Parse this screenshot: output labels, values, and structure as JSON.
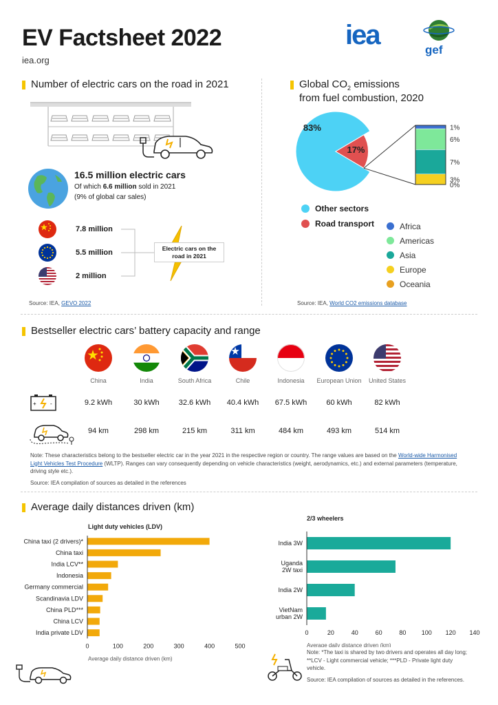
{
  "header": {
    "title": "EV Factsheet 2022",
    "site": "iea.org",
    "iea_logo": "iea",
    "gef_logo": "gef"
  },
  "s1": {
    "heading": "Number of electric cars on the road in 2021",
    "total": "16.5 million electric cars",
    "sold_pre": "Of which ",
    "sold_bold": "6.6 million",
    "sold_post": " sold in 2021",
    "share": "(9% of global car sales)",
    "countries": [
      {
        "flag": "china-flag",
        "value": "7.8 million"
      },
      {
        "flag": "eu-flag",
        "value": "5.5 million"
      },
      {
        "flag": "usa-flag",
        "value": "2 million"
      }
    ],
    "callout": "Electric cars on the road in 2021",
    "source_pre": "Source: IEA, ",
    "source_link": "GEVO 2022"
  },
  "s2": {
    "heading_1": "Global CO",
    "heading_sub": "2",
    "heading_2": " emissions",
    "heading_3": "from fuel combustion, 2020",
    "source_pre": "Source: IEA, ",
    "source_link": "World CO2 emissions database"
  },
  "chart_data": [
    {
      "type": "pie",
      "title": "",
      "slices": [
        {
          "name": "Other sectors",
          "value": 83,
          "label": "83%",
          "color": "#4dd2f5"
        },
        {
          "name": "Road transport",
          "value": 17,
          "label": "17%",
          "color": "#e05050"
        }
      ],
      "breakdown": {
        "type": "stacked-bar",
        "of": "Road transport",
        "segments": [
          {
            "name": "Africa",
            "value": 1,
            "label": "1%",
            "color": "#3a6fd0"
          },
          {
            "name": "Americas",
            "value": 6,
            "label": "6%",
            "color": "#7ee89a"
          },
          {
            "name": "Asia",
            "value": 7,
            "label": "7%",
            "color": "#1aa89a"
          },
          {
            "name": "Europe",
            "value": 3,
            "label": "3%",
            "color": "#f5d020"
          },
          {
            "name": "Oceania",
            "value": 0,
            "label": "0%",
            "color": "#e8a020"
          }
        ]
      }
    },
    {
      "type": "bar",
      "orientation": "horizontal",
      "title": "Light duty vehicles (LDV)",
      "categories": [
        "China taxi (2 drivers)*",
        "China taxi",
        "India LCV**",
        "Indonesia",
        "Germany commercial",
        "Scandinavia LDV",
        "China PLD***",
        "China LCV",
        "India private LDV"
      ],
      "values": [
        400,
        240,
        100,
        78,
        68,
        50,
        42,
        40,
        40
      ],
      "xlabel": "Average daily distance driven (km)",
      "xlim": [
        0,
        500
      ],
      "ticks": [
        "0",
        "100",
        "200",
        "300",
        "400",
        "500"
      ],
      "color": "#f2a90a",
      "grid": false
    },
    {
      "type": "bar",
      "orientation": "horizontal",
      "title": "2/3 wheelers",
      "categories": [
        "India 3W",
        "Uganda 2W taxi",
        "India 2W",
        "VietNam urban 2W"
      ],
      "values": [
        120,
        74,
        40,
        16
      ],
      "xlabel": "Average daily distance driven (km)",
      "xlim": [
        0,
        140
      ],
      "ticks": [
        "0",
        "20",
        "40",
        "60",
        "80",
        "100",
        "120",
        "140"
      ],
      "color": "#1aaa9a",
      "grid": false
    }
  ],
  "pie_legend": [
    {
      "label": "Other sectors",
      "color": "#4dd2f5"
    },
    {
      "label": "Road transport",
      "color": "#e05050"
    }
  ],
  "region_legend": [
    {
      "label": "Africa",
      "color": "#3a6fd0"
    },
    {
      "label": "Americas",
      "color": "#7ee89a"
    },
    {
      "label": "Asia",
      "color": "#1aa89a"
    },
    {
      "label": "Europe",
      "color": "#f5d020"
    },
    {
      "label": "Oceania",
      "color": "#e8a020"
    }
  ],
  "s3": {
    "heading": "Bestseller electric cars’ battery capacity and range",
    "countries": [
      {
        "name": "China",
        "flag": "china-flag",
        "battery": "9.2 kWh",
        "range": "94 km"
      },
      {
        "name": "India",
        "flag": "india-flag",
        "battery": "30 kWh",
        "range": "298 km"
      },
      {
        "name": "South Africa",
        "flag": "south-africa-flag",
        "battery": "32.6 kWh",
        "range": "215 km"
      },
      {
        "name": "Chile",
        "flag": "chile-flag",
        "battery": "40.4 kWh",
        "range": "311 km"
      },
      {
        "name": "Indonesia",
        "flag": "indonesia-flag",
        "battery": "67.5 kWh",
        "range": "484 km"
      },
      {
        "name": "European Union",
        "flag": "eu-flag",
        "battery": "60 kWh",
        "range": "493 km"
      },
      {
        "name": "United States",
        "flag": "usa-flag",
        "battery": "82 kWh",
        "range": "514 km"
      }
    ],
    "note_pre": "Note: These characteristics belong to the bestseller electric car in the year 2021 in the respective region or country. The range values are based on the ",
    "note_link": "World-wide Harmonised Light Vehicles Test Procedure",
    "note_post": " (WLTP). Ranges can vary consequently depending on vehicle characteristics (weight, aerodynamics, etc.) and external parameters (temperature, driving style etc.).",
    "source": "Source: IEA compilation of sources as detailed in the references"
  },
  "s4": {
    "heading": "Average daily distances driven (km)",
    "note": "Note: *The taxi is shared by two drivers and operates all day long; **LCV - Light commercial vehicle; ***PLD - Private light duty vehicle.",
    "source": "Source: IEA compilation of sources as detailed in the references."
  }
}
